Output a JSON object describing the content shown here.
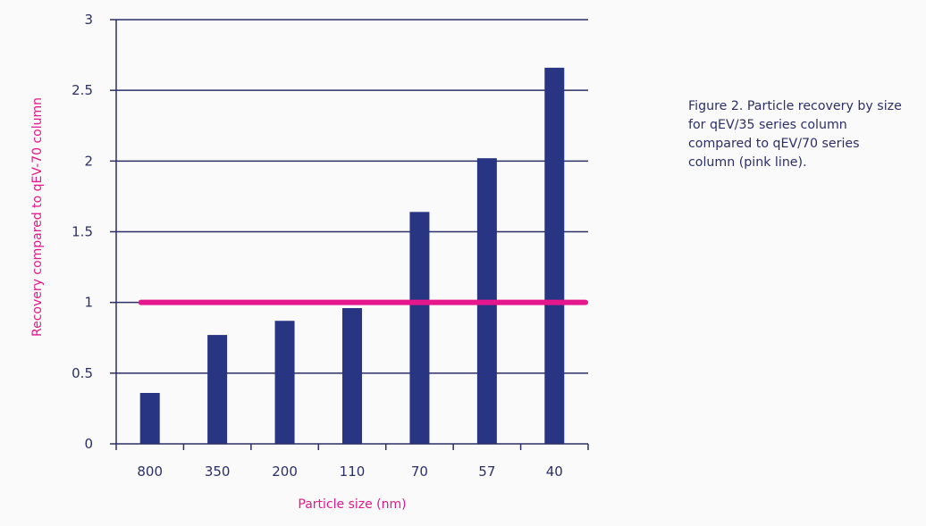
{
  "chart_data": {
    "type": "bar",
    "categories": [
      "800",
      "350",
      "200",
      "110",
      "70",
      "57",
      "40"
    ],
    "values": [
      0.36,
      0.77,
      0.87,
      0.96,
      1.64,
      2.02,
      2.66
    ],
    "ylim": [
      0,
      3
    ],
    "yticks": [
      "0",
      "0.5",
      "1",
      "1.5",
      "2",
      "2.5",
      "3"
    ],
    "ytick_values": [
      0,
      0.5,
      1,
      1.5,
      2,
      2.5,
      3
    ],
    "xlabel": "Particle size (nm)",
    "ylabel": "Recovery compared to qEV-70 column",
    "reference_line": {
      "value": 1,
      "color": "#e5178c",
      "label": "qEV/70 series column"
    },
    "bar_color": "#283583",
    "grid": true
  },
  "caption": "Figure 2. Particle recovery by size for qEV/35 series column compared to qEV/70 series column (pink line)."
}
